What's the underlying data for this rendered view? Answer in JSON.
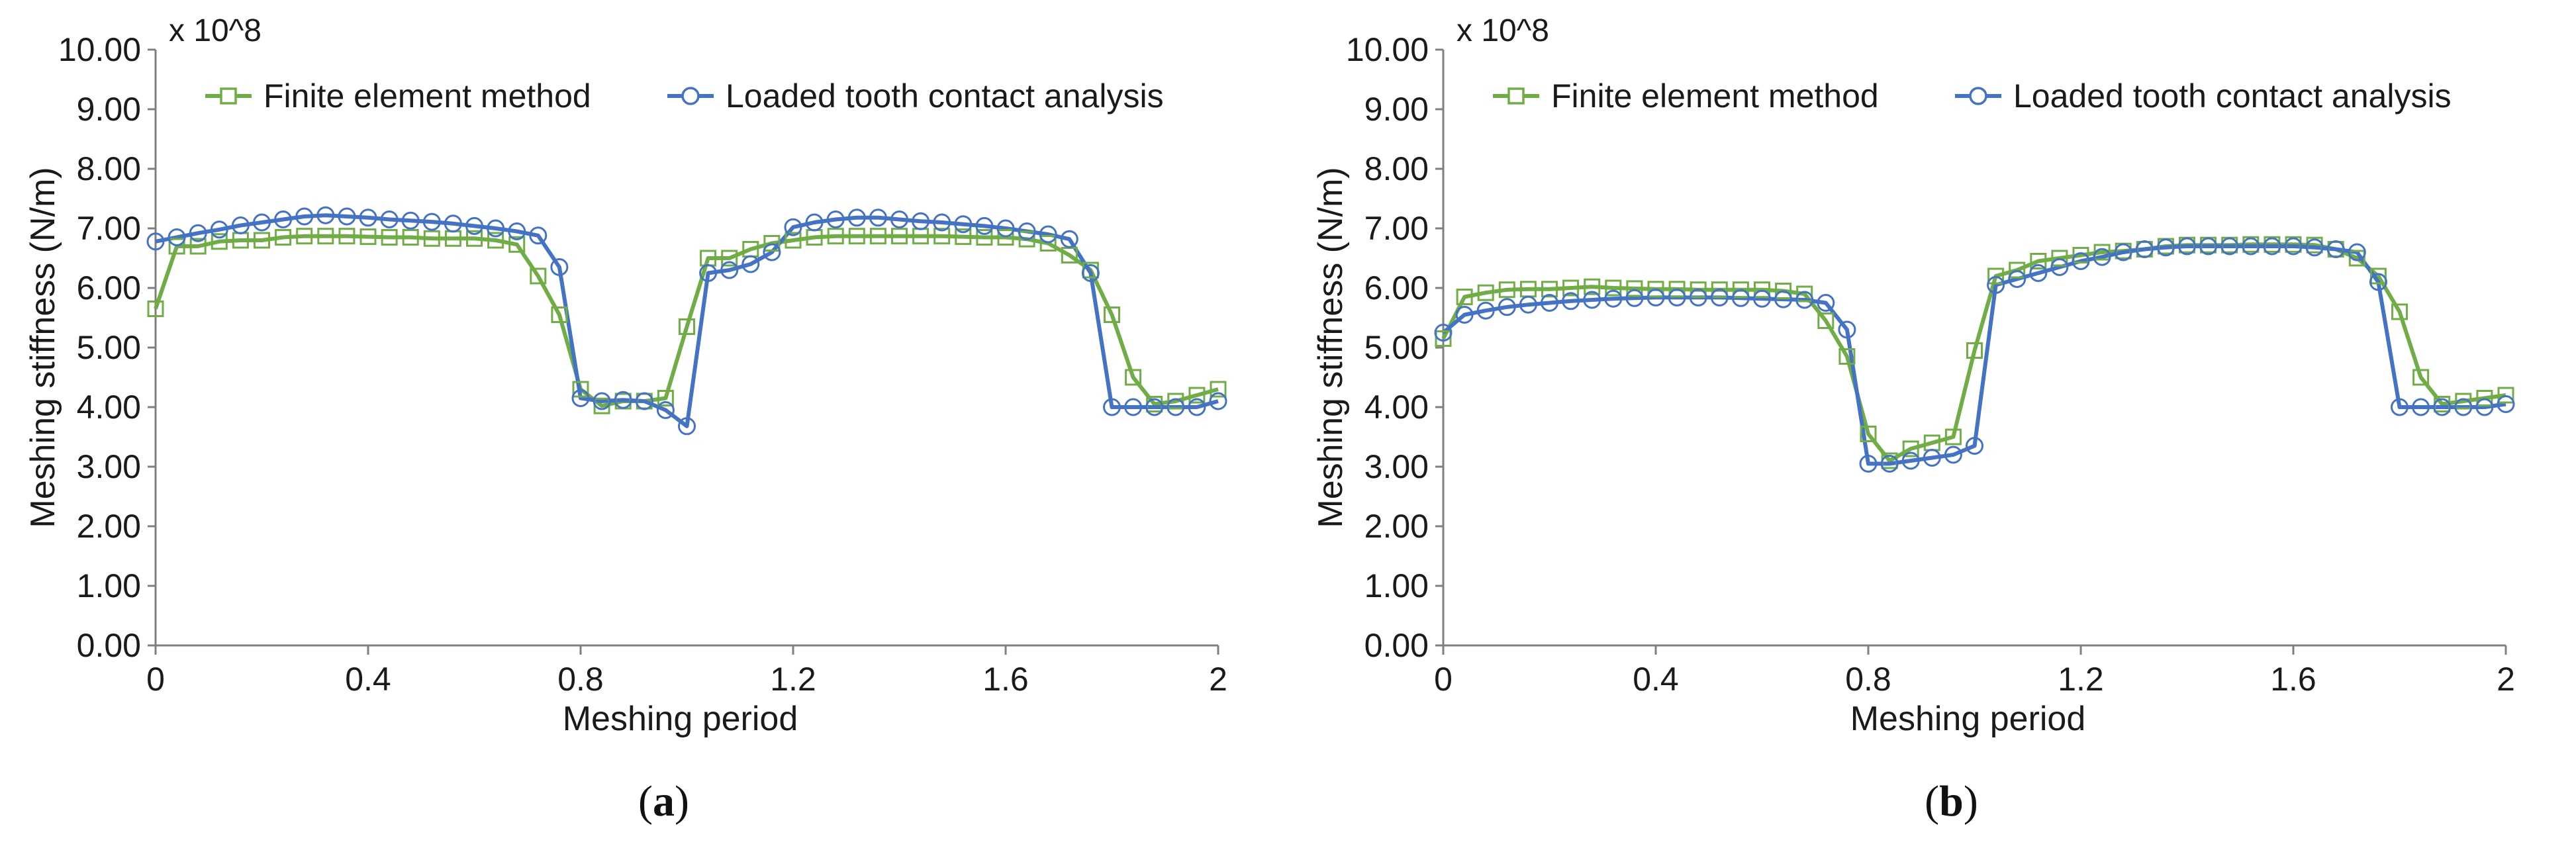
{
  "chart_data": [
    {
      "type": "line",
      "panel": "(a)",
      "caption_open": "(",
      "caption_letter": "a",
      "caption_close": ")",
      "xlabel": "Meshing period",
      "ylabel": "Meshing stiffness (N/m)",
      "y_multiplier": "x 10^8",
      "xlim": [
        0,
        2
      ],
      "ylim": [
        0,
        10
      ],
      "x_ticks": [
        0,
        0.4,
        0.8,
        1.2,
        1.6,
        2
      ],
      "x_tick_labels": [
        "0",
        "0.4",
        "0.8",
        "1.2",
        "1.6",
        "2"
      ],
      "y_ticks": [
        0,
        1,
        2,
        3,
        4,
        5,
        6,
        7,
        8,
        9,
        10
      ],
      "y_tick_labels": [
        "0.00",
        "1.00",
        "2.00",
        "3.00",
        "4.00",
        "5.00",
        "6.00",
        "7.00",
        "8.00",
        "9.00",
        "10.00"
      ],
      "legend_position": "top",
      "series": [
        {
          "name": "Finite element method",
          "color": "#70ad47",
          "marker": "square",
          "x": [
            0,
            0.04,
            0.08,
            0.12,
            0.16,
            0.2,
            0.24,
            0.28,
            0.32,
            0.36,
            0.4,
            0.44,
            0.48,
            0.52,
            0.56,
            0.6,
            0.64,
            0.68,
            0.72,
            0.76,
            0.8,
            0.84,
            0.88,
            0.92,
            0.96,
            1.0,
            1.04,
            1.08,
            1.12,
            1.16,
            1.2,
            1.24,
            1.28,
            1.32,
            1.36,
            1.4,
            1.44,
            1.48,
            1.52,
            1.56,
            1.6,
            1.64,
            1.68,
            1.72,
            1.76,
            1.8,
            1.84,
            1.88,
            1.92,
            1.96,
            2.0
          ],
          "y": [
            5.65,
            6.7,
            6.7,
            6.78,
            6.8,
            6.8,
            6.85,
            6.87,
            6.87,
            6.87,
            6.86,
            6.85,
            6.85,
            6.83,
            6.83,
            6.83,
            6.8,
            6.73,
            6.2,
            5.55,
            4.3,
            4.02,
            4.1,
            4.1,
            4.15,
            5.35,
            6.5,
            6.5,
            6.65,
            6.75,
            6.8,
            6.85,
            6.87,
            6.87,
            6.87,
            6.87,
            6.87,
            6.87,
            6.86,
            6.85,
            6.85,
            6.82,
            6.75,
            6.55,
            6.3,
            5.55,
            4.5,
            4.05,
            4.1,
            4.2,
            4.3
          ]
        },
        {
          "name": "Loaded tooth contact analysis",
          "color": "#4472c4",
          "marker": "circle",
          "x": [
            0,
            0.04,
            0.08,
            0.12,
            0.16,
            0.2,
            0.24,
            0.28,
            0.32,
            0.36,
            0.4,
            0.44,
            0.48,
            0.52,
            0.56,
            0.6,
            0.64,
            0.68,
            0.72,
            0.76,
            0.8,
            0.84,
            0.88,
            0.92,
            0.96,
            1.0,
            1.04,
            1.08,
            1.12,
            1.16,
            1.2,
            1.24,
            1.28,
            1.32,
            1.36,
            1.4,
            1.44,
            1.48,
            1.52,
            1.56,
            1.6,
            1.64,
            1.68,
            1.72,
            1.76,
            1.8,
            1.84,
            1.88,
            1.92,
            1.96,
            2.0
          ],
          "y": [
            6.78,
            6.85,
            6.92,
            6.98,
            7.05,
            7.1,
            7.15,
            7.2,
            7.22,
            7.2,
            7.18,
            7.15,
            7.13,
            7.11,
            7.08,
            7.04,
            7.0,
            6.95,
            6.88,
            6.35,
            4.15,
            4.1,
            4.12,
            4.1,
            3.95,
            3.68,
            6.25,
            6.3,
            6.4,
            6.6,
            7.02,
            7.1,
            7.15,
            7.18,
            7.18,
            7.15,
            7.12,
            7.1,
            7.07,
            7.04,
            7.0,
            6.95,
            6.9,
            6.82,
            6.25,
            4.0,
            4.0,
            4.0,
            4.0,
            4.0,
            4.1
          ]
        }
      ]
    },
    {
      "type": "line",
      "panel": "(b)",
      "caption_open": "(",
      "caption_letter": "b",
      "caption_close": ")",
      "xlabel": "Meshing period",
      "ylabel": "Meshing stiffness (N/m)",
      "y_multiplier": "x 10^8",
      "xlim": [
        0,
        2
      ],
      "ylim": [
        0,
        10
      ],
      "x_ticks": [
        0,
        0.4,
        0.8,
        1.2,
        1.6,
        2
      ],
      "x_tick_labels": [
        "0",
        "0.4",
        "0.8",
        "1.2",
        "1.6",
        "2"
      ],
      "y_ticks": [
        0,
        1,
        2,
        3,
        4,
        5,
        6,
        7,
        8,
        9,
        10
      ],
      "y_tick_labels": [
        "0.00",
        "1.00",
        "2.00",
        "3.00",
        "4.00",
        "5.00",
        "6.00",
        "7.00",
        "8.00",
        "9.00",
        "10.00"
      ],
      "legend_position": "top",
      "series": [
        {
          "name": "Finite element method",
          "color": "#70ad47",
          "marker": "square",
          "x": [
            0,
            0.04,
            0.08,
            0.12,
            0.16,
            0.2,
            0.24,
            0.28,
            0.32,
            0.36,
            0.4,
            0.44,
            0.48,
            0.52,
            0.56,
            0.6,
            0.64,
            0.68,
            0.72,
            0.76,
            0.8,
            0.84,
            0.88,
            0.92,
            0.96,
            1.0,
            1.04,
            1.08,
            1.12,
            1.16,
            1.2,
            1.24,
            1.28,
            1.32,
            1.36,
            1.4,
            1.44,
            1.48,
            1.52,
            1.56,
            1.6,
            1.64,
            1.68,
            1.72,
            1.76,
            1.8,
            1.84,
            1.88,
            1.92,
            1.96,
            2.0
          ],
          "y": [
            5.15,
            5.85,
            5.92,
            5.97,
            5.98,
            5.98,
            6.0,
            6.02,
            6.0,
            5.99,
            5.98,
            5.98,
            5.97,
            5.97,
            5.97,
            5.97,
            5.95,
            5.9,
            5.45,
            4.85,
            3.55,
            3.1,
            3.3,
            3.4,
            3.5,
            4.95,
            6.2,
            6.3,
            6.45,
            6.5,
            6.55,
            6.6,
            6.62,
            6.65,
            6.7,
            6.72,
            6.72,
            6.72,
            6.73,
            6.73,
            6.73,
            6.72,
            6.65,
            6.5,
            6.2,
            5.6,
            4.5,
            4.05,
            4.1,
            4.15,
            4.2
          ]
        },
        {
          "name": "Loaded tooth contact analysis",
          "color": "#4472c4",
          "marker": "circle",
          "x": [
            0,
            0.04,
            0.08,
            0.12,
            0.16,
            0.2,
            0.24,
            0.28,
            0.32,
            0.36,
            0.4,
            0.44,
            0.48,
            0.52,
            0.56,
            0.6,
            0.64,
            0.68,
            0.72,
            0.76,
            0.8,
            0.84,
            0.88,
            0.92,
            0.96,
            1.0,
            1.04,
            1.08,
            1.12,
            1.16,
            1.2,
            1.24,
            1.28,
            1.32,
            1.36,
            1.4,
            1.44,
            1.48,
            1.52,
            1.56,
            1.6,
            1.64,
            1.68,
            1.72,
            1.76,
            1.8,
            1.84,
            1.88,
            1.92,
            1.96,
            2.0
          ],
          "y": [
            5.25,
            5.55,
            5.62,
            5.68,
            5.72,
            5.75,
            5.78,
            5.8,
            5.82,
            5.83,
            5.84,
            5.84,
            5.84,
            5.84,
            5.83,
            5.82,
            5.81,
            5.8,
            5.75,
            5.3,
            3.05,
            3.05,
            3.1,
            3.15,
            3.2,
            3.35,
            6.05,
            6.15,
            6.25,
            6.35,
            6.45,
            6.52,
            6.6,
            6.65,
            6.68,
            6.7,
            6.7,
            6.7,
            6.7,
            6.7,
            6.7,
            6.68,
            6.65,
            6.6,
            6.1,
            4.0,
            4.0,
            4.0,
            4.0,
            4.0,
            4.05
          ]
        }
      ]
    }
  ]
}
